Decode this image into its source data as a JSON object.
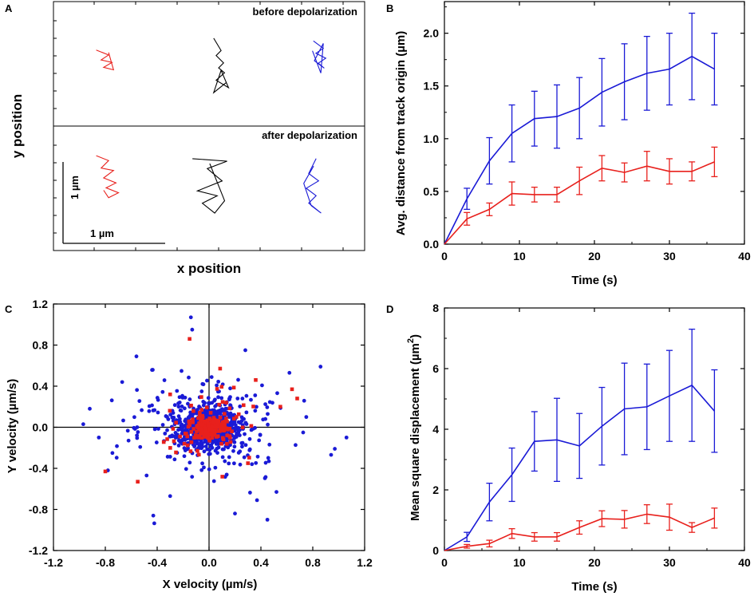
{
  "colors": {
    "red": "#e8201c",
    "blue": "#1a1ad6",
    "black": "#000000"
  },
  "chart_data": [
    {
      "panel": "A",
      "type": "scatter",
      "description_kind": "trajectories",
      "xlabel": "x position",
      "ylabel": "y position",
      "annotations": {
        "top": "before depolarization",
        "bottom": "after depolarization",
        "scale_y": "1 µm",
        "scale_x": "1 µm"
      },
      "tracks_before": [
        {
          "color": "red",
          "points": [
            [
              -0.2,
              0.15
            ],
            [
              0.05,
              0.05
            ],
            [
              -0.1,
              -0.05
            ],
            [
              0.12,
              -0.1
            ],
            [
              -0.05,
              -0.2
            ],
            [
              0.15,
              -0.25
            ],
            [
              0.05,
              0.1
            ]
          ]
        },
        {
          "color": "black",
          "points": [
            [
              -0.1,
              0.55
            ],
            [
              0.05,
              0.3
            ],
            [
              -0.05,
              0.2
            ],
            [
              0.1,
              0.05
            ],
            [
              0.0,
              -0.05
            ],
            [
              0.12,
              -0.15
            ],
            [
              -0.05,
              -0.3
            ],
            [
              0.2,
              -0.45
            ],
            [
              0.05,
              -0.1
            ],
            [
              -0.1,
              -0.55
            ],
            [
              0.15,
              -0.35
            ]
          ]
        },
        {
          "color": "blue",
          "points": [
            [
              -0.1,
              0.35
            ],
            [
              0.1,
              0.2
            ],
            [
              -0.05,
              0.1
            ],
            [
              0.15,
              0.0
            ],
            [
              0.0,
              -0.1
            ],
            [
              0.12,
              -0.2
            ],
            [
              -0.08,
              -0.05
            ],
            [
              0.1,
              0.3
            ],
            [
              0.05,
              -0.3
            ],
            [
              -0.12,
              0.15
            ]
          ]
        }
      ],
      "tracks_after": [
        {
          "color": "red",
          "points": [
            [
              -0.2,
              0.45
            ],
            [
              0.05,
              0.35
            ],
            [
              -0.1,
              0.2
            ],
            [
              0.15,
              0.15
            ],
            [
              -0.05,
              0.0
            ],
            [
              0.2,
              -0.1
            ],
            [
              0.0,
              -0.2
            ],
            [
              0.25,
              -0.3
            ],
            [
              0.05,
              -0.4
            ],
            [
              -0.05,
              -0.25
            ]
          ]
        },
        {
          "color": "black",
          "points": [
            [
              -0.4,
              0.55
            ],
            [
              0.3,
              0.5
            ],
            [
              -0.1,
              0.35
            ],
            [
              0.2,
              0.1
            ],
            [
              -0.3,
              -0.1
            ],
            [
              0.1,
              -0.2
            ],
            [
              -0.2,
              -0.35
            ],
            [
              0.05,
              -0.55
            ],
            [
              0.25,
              -0.3
            ],
            [
              -0.05,
              0.45
            ]
          ]
        },
        {
          "color": "blue",
          "points": [
            [
              0.1,
              0.6
            ],
            [
              -0.05,
              0.3
            ],
            [
              0.15,
              0.15
            ],
            [
              -0.1,
              0.0
            ],
            [
              0.1,
              -0.15
            ],
            [
              -0.05,
              -0.3
            ],
            [
              0.2,
              -0.5
            ],
            [
              0.0,
              -0.35
            ],
            [
              -0.15,
              0.1
            ],
            [
              0.05,
              0.45
            ]
          ]
        }
      ]
    },
    {
      "panel": "B",
      "type": "line",
      "title": "",
      "xlabel": "Time (s)",
      "ylabel": "Avg. distance from track origin (µm)",
      "xlim": [
        0,
        40
      ],
      "ylim": [
        0,
        2.3
      ],
      "xticks": [
        "0",
        "10",
        "20",
        "30",
        "40"
      ],
      "yticks": [
        "0.0",
        "0.5",
        "1.0",
        "1.5",
        "2.0"
      ],
      "x": [
        0,
        3,
        6,
        9,
        12,
        15,
        18,
        21,
        24,
        27,
        30,
        33,
        36
      ],
      "series": [
        {
          "name": "blue",
          "color": "blue",
          "values": [
            0,
            0.43,
            0.79,
            1.05,
            1.19,
            1.21,
            1.29,
            1.44,
            1.54,
            1.62,
            1.66,
            1.78,
            1.66
          ],
          "errors": [
            0,
            0.1,
            0.22,
            0.27,
            0.26,
            0.3,
            0.29,
            0.32,
            0.36,
            0.35,
            0.34,
            0.41,
            0.34
          ]
        },
        {
          "name": "red",
          "color": "red",
          "values": [
            0,
            0.24,
            0.33,
            0.48,
            0.47,
            0.47,
            0.6,
            0.72,
            0.68,
            0.74,
            0.69,
            0.69,
            0.78
          ],
          "errors": [
            0,
            0.06,
            0.06,
            0.11,
            0.07,
            0.07,
            0.13,
            0.12,
            0.09,
            0.14,
            0.12,
            0.09,
            0.14
          ]
        }
      ]
    },
    {
      "panel": "C",
      "type": "scatter",
      "xlabel": "X velocity (µm/s)",
      "ylabel": "Y velocity (µm/s)",
      "xlim": [
        -1.2,
        1.2
      ],
      "ylim": [
        -1.2,
        1.2
      ],
      "xticks": [
        "-1.2",
        "-0.8",
        "-0.4",
        "0.0",
        "0.4",
        "0.8",
        "1.2"
      ],
      "yticks": [
        "-1.2",
        "-0.8",
        "-0.4",
        "0.0",
        "0.4",
        "0.8",
        "1.2"
      ],
      "series": [
        {
          "name": "blue",
          "color": "blue",
          "marker": "circle",
          "n": 950,
          "sd": 0.19,
          "outliers": [
            [
              -0.14,
              1.07
            ],
            [
              0.86,
              0.59
            ],
            [
              1.06,
              -0.1
            ],
            [
              -0.92,
              0.18
            ],
            [
              -0.56,
              0.69
            ],
            [
              -0.13,
              0.95
            ],
            [
              0.37,
              -0.71
            ],
            [
              -0.43,
              -0.86
            ],
            [
              -0.78,
              -0.42
            ],
            [
              0.52,
              -0.63
            ],
            [
              0.62,
              0.53
            ],
            [
              0.2,
              -0.84
            ],
            [
              -0.3,
              -0.67
            ],
            [
              -0.97,
              0.03
            ],
            [
              0.97,
              -0.21
            ],
            [
              0.28,
              0.75
            ],
            [
              -0.67,
              0.44
            ],
            [
              0.75,
              0.1
            ],
            [
              -0.85,
              -0.1
            ],
            [
              0.45,
              -0.9
            ]
          ]
        },
        {
          "name": "red",
          "color": "red",
          "marker": "square",
          "n": 230,
          "sd": 0.11,
          "outliers": [
            [
              -0.15,
              0.86
            ],
            [
              -0.8,
              -0.43
            ],
            [
              -0.55,
              -0.53
            ],
            [
              0.68,
              0.28
            ],
            [
              0.64,
              0.37
            ],
            [
              0.36,
              0.46
            ],
            [
              0.55,
              0.2
            ],
            [
              -0.3,
              0.32
            ],
            [
              0.3,
              -0.35
            ]
          ]
        }
      ]
    },
    {
      "panel": "D",
      "type": "line",
      "xlabel": "Time (s)",
      "ylabel": "Mean square displacement (µm²)",
      "ylabel_main": "Mean square displacement (µm",
      "ylabel_sup": "2",
      "ylabel_end": ")",
      "xlim": [
        0,
        40
      ],
      "ylim": [
        0,
        8
      ],
      "xticks": [
        "0",
        "10",
        "20",
        "30",
        "40"
      ],
      "yticks": [
        "0",
        "2",
        "4",
        "6",
        "8"
      ],
      "x": [
        0,
        3,
        6,
        9,
        12,
        15,
        18,
        21,
        24,
        27,
        30,
        33,
        36
      ],
      "series": [
        {
          "name": "blue",
          "color": "blue",
          "values": [
            0,
            0.45,
            1.6,
            2.5,
            3.6,
            3.65,
            3.45,
            4.1,
            4.67,
            4.74,
            5.1,
            5.45,
            4.6
          ],
          "errors": [
            0,
            0.15,
            0.62,
            0.88,
            0.98,
            1.37,
            1.07,
            1.28,
            1.51,
            1.41,
            1.5,
            1.85,
            1.36
          ]
        },
        {
          "name": "red",
          "color": "red",
          "values": [
            0,
            0.14,
            0.23,
            0.56,
            0.45,
            0.45,
            0.76,
            1.05,
            1.03,
            1.2,
            1.1,
            0.76,
            1.07
          ],
          "errors": [
            0,
            0.06,
            0.11,
            0.16,
            0.14,
            0.14,
            0.22,
            0.26,
            0.29,
            0.31,
            0.43,
            0.16,
            0.33
          ]
        }
      ]
    }
  ],
  "panels": {
    "A": "A",
    "B": "B",
    "C": "C",
    "D": "D"
  }
}
